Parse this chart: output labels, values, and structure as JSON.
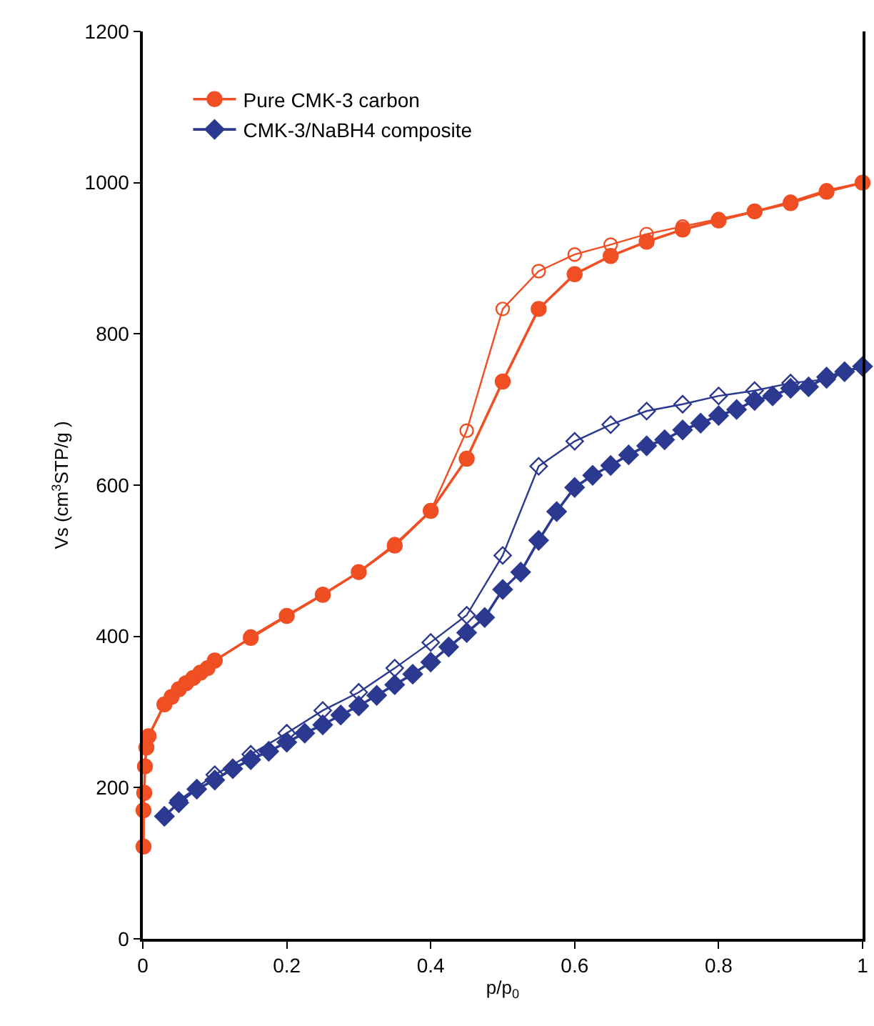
{
  "chart_data": {
    "type": "line",
    "xlabel": "p/p$_{0}$",
    "ylabel": "Vs (cm$^{3}$STP/g )",
    "xlim": [
      0,
      1
    ],
    "xticks": [
      0,
      0.2,
      0.4,
      0.6,
      0.8,
      1
    ],
    "ylim": [
      0,
      1200
    ],
    "yticks": [
      0,
      200,
      400,
      600,
      800,
      1000,
      1200
    ],
    "legend": "top left",
    "line_style": "solid",
    "series": [
      {
        "name": "Pure CMK-3 carbon",
        "color": "#f04e23",
        "marker": "circle",
        "x": [
          0.001,
          0.001,
          0.002,
          0.003,
          0.005,
          0.008,
          0.03,
          0.04,
          0.05,
          0.06,
          0.07,
          0.08,
          0.09,
          0.1,
          0.15,
          0.2,
          0.25,
          0.3,
          0.35,
          0.4,
          0.45,
          0.5,
          0.55,
          0.6,
          0.65,
          0.7,
          0.75,
          0.8,
          0.85,
          0.9,
          0.95,
          1.0
        ],
        "values": [
          122,
          170,
          193,
          228,
          253,
          268,
          310,
          320,
          330,
          338,
          345,
          352,
          358,
          368,
          398,
          427,
          455,
          485,
          520,
          566,
          635,
          737,
          833,
          879,
          903,
          922,
          938,
          950,
          962,
          973,
          988,
          1000
        ]
      },
      {
        "color": "#f04e23",
        "marker": "circle-open",
        "x": [
          1.0,
          0.95,
          0.9,
          0.85,
          0.8,
          0.75,
          0.7,
          0.65,
          0.6,
          0.55,
          0.5,
          0.45,
          0.4,
          0.35,
          0.3,
          0.25,
          0.2,
          0.15
        ],
        "values": [
          1000,
          990,
          975,
          962,
          952,
          942,
          932,
          918,
          905,
          883,
          833,
          672,
          566,
          522,
          485,
          456,
          428,
          400
        ]
      },
      {
        "name": "CMK-3/NaBH4 composite",
        "color": "#2b3990",
        "marker": "diamond",
        "x": [
          0.03,
          0.05,
          0.075,
          0.1,
          0.125,
          0.15,
          0.175,
          0.2,
          0.225,
          0.25,
          0.275,
          0.3,
          0.325,
          0.35,
          0.375,
          0.4,
          0.425,
          0.45,
          0.475,
          0.5,
          0.525,
          0.55,
          0.575,
          0.6,
          0.625,
          0.65,
          0.675,
          0.7,
          0.725,
          0.75,
          0.775,
          0.8,
          0.825,
          0.85,
          0.875,
          0.9,
          0.925,
          0.95,
          0.975,
          1.0
        ],
        "values": [
          162,
          180,
          198,
          210,
          225,
          237,
          248,
          260,
          272,
          283,
          296,
          308,
          322,
          336,
          350,
          366,
          386,
          405,
          425,
          462,
          485,
          527,
          565,
          597,
          613,
          626,
          640,
          652,
          660,
          673,
          682,
          692,
          700,
          712,
          718,
          728,
          730,
          743,
          750,
          757
        ]
      },
      {
        "color": "#2b3990",
        "marker": "diamond-open",
        "x": [
          1.0,
          0.95,
          0.9,
          0.85,
          0.8,
          0.75,
          0.7,
          0.65,
          0.6,
          0.55,
          0.5,
          0.45,
          0.4,
          0.35,
          0.3,
          0.25,
          0.2,
          0.15,
          0.1,
          0.05
        ],
        "values": [
          757,
          740,
          735,
          725,
          718,
          707,
          698,
          680,
          658,
          625,
          507,
          428,
          392,
          358,
          326,
          302,
          272,
          244,
          217,
          183
        ]
      }
    ]
  }
}
